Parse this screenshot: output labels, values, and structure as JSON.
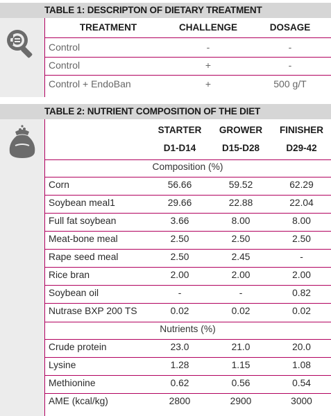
{
  "table1": {
    "title": "TABLE 1: DESCRIPTON OF DIETARY TREATMENT",
    "icon": "magnifier-icon",
    "headers": [
      "TREATMENT",
      "CHALLENGE",
      "DOSAGE"
    ],
    "rows": [
      [
        "Control",
        "-",
        "-"
      ],
      [
        "Control",
        "+",
        "-"
      ],
      [
        "Control + EndoBan",
        "+",
        "500 g/T"
      ]
    ]
  },
  "table2": {
    "title": "TABLE 2: NUTRIENT COMPOSITION OF THE DIET",
    "icon": "feed-bag-icon",
    "headers": [
      "STARTER",
      "GROWER",
      "FINISHER"
    ],
    "subheaders": [
      "D1-D14",
      "D15-D28",
      "D29-42"
    ],
    "composition_label": "Composition (%)",
    "composition": [
      [
        "Corn",
        "56.66",
        "59.52",
        "62.29"
      ],
      [
        "Soybean meal1",
        "29.66",
        "22.88",
        "22.04"
      ],
      [
        "Full fat soybean",
        "3.66",
        "8.00",
        "8.00"
      ],
      [
        "Meat-bone meal",
        "2.50",
        "2.50",
        "2.50"
      ],
      [
        "Rape seed meal",
        "2.50",
        "2.45",
        "-"
      ],
      [
        "Rice bran",
        "2.00",
        "2.00",
        "2.00"
      ],
      [
        "Soybean oil",
        "-",
        "-",
        "0.82"
      ],
      [
        "Nutrase BXP 200 TS",
        "0.02",
        "0.02",
        "0.02"
      ]
    ],
    "nutrients_label": "Nutrients (%)",
    "nutrients": [
      [
        "Crude protein",
        "23.0",
        "21.0",
        "20.0"
      ],
      [
        "Lysine",
        "1.28",
        "1.15",
        "1.08"
      ],
      [
        "Methionine",
        "0.62",
        "0.56",
        "0.54"
      ],
      [
        "AME (kcal/kg)",
        "2800",
        "2900",
        "3000"
      ]
    ]
  },
  "colors": {
    "accent": "#b1005e",
    "bar": "#d6d6d6",
    "icon_bg": "#ececec",
    "icon_fill": "#6b6b6b"
  }
}
